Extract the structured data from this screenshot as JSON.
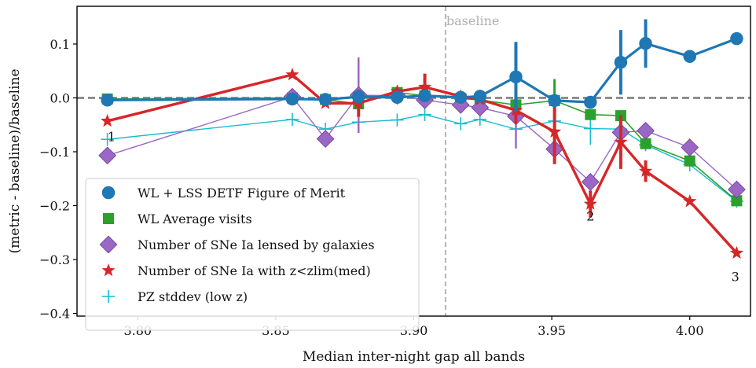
{
  "chart_data": {
    "type": "line",
    "xlabel": "Median inter-night gap all bands",
    "ylabel": "(metric - baseline)/baseline",
    "xlim": [
      3.778,
      4.022
    ],
    "ylim": [
      -0.405,
      0.17
    ],
    "x_ticks": [
      3.8,
      3.85,
      3.9,
      3.95,
      4.0
    ],
    "x_tick_labels": [
      "3.80",
      "3.85",
      "3.90",
      "3.95",
      "4.00"
    ],
    "y_ticks": [
      0.1,
      0.0,
      -0.1,
      -0.2,
      -0.3,
      -0.4
    ],
    "y_tick_labels": [
      "0.1",
      "0.0",
      "−0.1",
      "−0.2",
      "−0.3",
      "−0.4"
    ],
    "reference_lines": {
      "horizontal_y": 0.0,
      "vertical_x": 3.9115,
      "vertical_label": "baseline"
    },
    "legend_position": "lower-left",
    "series": [
      {
        "name": "WL + LSS DETF Figure of Merit",
        "color": "#1f77b4",
        "marker": "circle",
        "x": [
          3.789,
          3.856,
          3.868,
          3.88,
          3.894,
          3.904,
          3.917,
          3.924,
          3.937,
          3.951,
          3.964,
          3.975,
          3.984,
          4.0,
          4.017
        ],
        "y": [
          -0.004,
          -0.002,
          -0.003,
          0.002,
          0.001,
          0.004,
          0.001,
          0.003,
          0.039,
          -0.005,
          -0.008,
          0.066,
          0.101,
          0.077,
          0.11
        ],
        "err": [
          0,
          0,
          0,
          0,
          0,
          0,
          0,
          0,
          0.065,
          0,
          0.01,
          0.06,
          0.045,
          0,
          0
        ]
      },
      {
        "name": "WL Average visits",
        "color": "#2ca02c",
        "marker": "square",
        "x": [
          3.789,
          3.856,
          3.868,
          3.88,
          3.894,
          3.904,
          3.917,
          3.924,
          3.937,
          3.951,
          3.964,
          3.975,
          3.984,
          4.0,
          4.017
        ],
        "y": [
          -0.002,
          0.0,
          -0.003,
          -0.011,
          0.01,
          0.004,
          -0.001,
          -0.004,
          -0.013,
          -0.005,
          -0.031,
          -0.033,
          -0.085,
          -0.117,
          -0.191
        ],
        "err": [
          0,
          0,
          0,
          0.012,
          0,
          0,
          0,
          0,
          0,
          0.04,
          0,
          0,
          0,
          0,
          0
        ]
      },
      {
        "name": "Number of SNe Ia lensed by galaxies",
        "color": "#9b67c4",
        "marker": "diamond",
        "x": [
          3.789,
          3.856,
          3.868,
          3.88,
          3.894,
          3.904,
          3.917,
          3.924,
          3.937,
          3.951,
          3.964,
          3.975,
          3.984,
          4.0,
          4.017
        ],
        "y": [
          -0.107,
          0.002,
          -0.076,
          0.005,
          0.004,
          -0.004,
          -0.013,
          -0.018,
          -0.034,
          -0.095,
          -0.156,
          -0.064,
          -0.061,
          -0.092,
          -0.17
        ],
        "err": [
          0,
          0,
          0,
          0.07,
          0,
          0,
          0,
          0,
          0.06,
          0,
          0,
          0,
          0,
          0,
          0
        ]
      },
      {
        "name": "Number of SNe Ia with z<zlim(med)",
        "color": "#d62728",
        "marker": "star",
        "x": [
          3.789,
          3.856,
          3.868,
          3.88,
          3.894,
          3.904,
          3.917,
          3.924,
          3.937,
          3.951,
          3.964,
          3.975,
          3.984,
          4.0,
          4.017
        ],
        "y": [
          -0.043,
          0.043,
          -0.01,
          -0.01,
          0.012,
          0.02,
          0.003,
          -0.003,
          -0.023,
          -0.063,
          -0.197,
          -0.082,
          -0.136,
          -0.192,
          -0.288
        ],
        "err": [
          0,
          0,
          0,
          0.025,
          0,
          0.025,
          0,
          0,
          0.025,
          0.06,
          0.025,
          0.05,
          0.02,
          0,
          0
        ]
      },
      {
        "name": "PZ stddev (low z)",
        "color": "#17becf",
        "marker": "plus",
        "x": [
          3.789,
          3.856,
          3.868,
          3.88,
          3.894,
          3.904,
          3.917,
          3.924,
          3.937,
          3.951,
          3.964,
          3.975,
          3.984,
          4.0,
          4.017
        ],
        "y": [
          -0.077,
          -0.04,
          -0.058,
          -0.045,
          -0.041,
          -0.031,
          -0.048,
          -0.04,
          -0.058,
          -0.043,
          -0.057,
          -0.058,
          -0.087,
          -0.124,
          -0.192
        ],
        "err": [
          0,
          0,
          0,
          0,
          0,
          0,
          0,
          0,
          0,
          0,
          0.03,
          0,
          0,
          0,
          0
        ]
      }
    ],
    "annotations": [
      {
        "text": "1",
        "x": 3.7905,
        "y": -0.08
      },
      {
        "text": "2",
        "x": 3.964,
        "y": -0.228
      },
      {
        "text": "3",
        "x": 4.0165,
        "y": -0.34
      }
    ]
  }
}
